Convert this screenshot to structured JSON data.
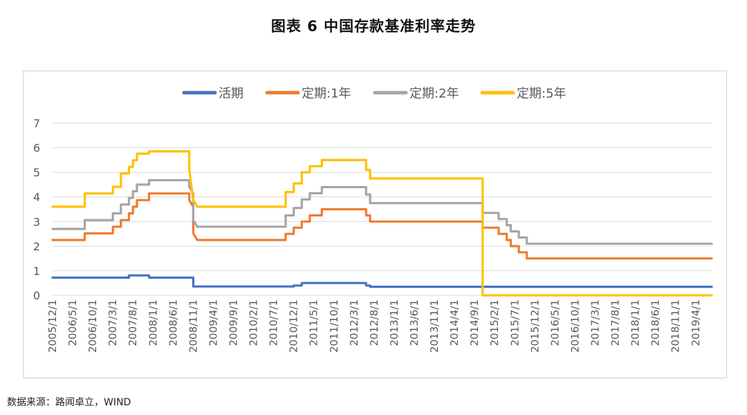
{
  "title": "图表 6 中国存款基准利率走势",
  "source": "数据来源：路闻卓立，WIND",
  "chart_data": {
    "type": "line",
    "title": "图表 6 中国存款基准利率走势",
    "xlabel": "",
    "ylabel": "",
    "ylim": [
      0,
      7
    ],
    "yticks": [
      0,
      1,
      2,
      3,
      4,
      5,
      6,
      7
    ],
    "grid": true,
    "legend_position": "top",
    "x_range": [
      "2005/12/1",
      "2019/8/1"
    ],
    "x_tick_labels": [
      "2005/12/1",
      "2006/5/1",
      "2006/10/1",
      "2007/3/1",
      "2007/8/1",
      "2008/1/1",
      "2008/6/1",
      "2008/11/1",
      "2009/4/1",
      "2009/9/1",
      "2010/2/1",
      "2010/7/1",
      "2010/12/1",
      "2011/5/1",
      "2011/10/1",
      "2012/3/1",
      "2012/8/1",
      "2013/1/1",
      "2013/6/1",
      "2013/11/1",
      "2014/4/1",
      "2014/9/1",
      "2015/2/1",
      "2015/7/1",
      "2015/12/1",
      "2016/5/1",
      "2016/10/1",
      "2017/3/1",
      "2017/8/1",
      "2018/1/1",
      "2018/6/1",
      "2018/11/1",
      "2019/4/1"
    ],
    "series": [
      {
        "name": "活期",
        "color": "#4472C4",
        "points": [
          [
            "2005/12/1",
            0.72
          ],
          [
            "2007/7/1",
            0.72
          ],
          [
            "2007/7/1",
            0.81
          ],
          [
            "2007/12/1",
            0.81
          ],
          [
            "2007/12/1",
            0.72
          ],
          [
            "2008/11/1",
            0.72
          ],
          [
            "2008/11/1",
            0.36
          ],
          [
            "2010/12/1",
            0.36
          ],
          [
            "2010/12/1",
            0.4
          ],
          [
            "2011/2/1",
            0.4
          ],
          [
            "2011/2/1",
            0.5
          ],
          [
            "2012/6/1",
            0.5
          ],
          [
            "2012/6/1",
            0.4
          ],
          [
            "2012/7/1",
            0.4
          ],
          [
            "2012/7/1",
            0.35
          ],
          [
            "2019/8/1",
            0.35
          ]
        ]
      },
      {
        "name": "定期:1年",
        "color": "#ED7D31",
        "points": [
          [
            "2005/12/1",
            2.25
          ],
          [
            "2006/8/1",
            2.25
          ],
          [
            "2006/8/1",
            2.52
          ],
          [
            "2007/3/1",
            2.52
          ],
          [
            "2007/3/1",
            2.79
          ],
          [
            "2007/5/1",
            2.79
          ],
          [
            "2007/5/1",
            3.06
          ],
          [
            "2007/7/1",
            3.06
          ],
          [
            "2007/7/1",
            3.33
          ],
          [
            "2007/8/1",
            3.33
          ],
          [
            "2007/8/1",
            3.6
          ],
          [
            "2007/9/1",
            3.6
          ],
          [
            "2007/9/1",
            3.87
          ],
          [
            "2007/12/1",
            3.87
          ],
          [
            "2007/12/1",
            4.14
          ],
          [
            "2008/10/1",
            4.14
          ],
          [
            "2008/10/1",
            3.87
          ],
          [
            "2008/11/1",
            3.6
          ],
          [
            "2008/11/1",
            2.52
          ],
          [
            "2008/12/1",
            2.25
          ],
          [
            "2010/10/1",
            2.25
          ],
          [
            "2010/10/1",
            2.5
          ],
          [
            "2010/12/1",
            2.5
          ],
          [
            "2010/12/1",
            2.75
          ],
          [
            "2011/2/1",
            2.75
          ],
          [
            "2011/2/1",
            3.0
          ],
          [
            "2011/4/1",
            3.0
          ],
          [
            "2011/4/1",
            3.25
          ],
          [
            "2011/7/1",
            3.25
          ],
          [
            "2011/7/1",
            3.5
          ],
          [
            "2012/6/1",
            3.5
          ],
          [
            "2012/6/1",
            3.25
          ],
          [
            "2012/7/1",
            3.25
          ],
          [
            "2012/7/1",
            3.0
          ],
          [
            "2014/11/1",
            3.0
          ],
          [
            "2014/11/1",
            2.75
          ],
          [
            "2015/3/1",
            2.75
          ],
          [
            "2015/3/1",
            2.5
          ],
          [
            "2015/5/1",
            2.5
          ],
          [
            "2015/5/1",
            2.25
          ],
          [
            "2015/6/1",
            2.25
          ],
          [
            "2015/6/1",
            2.0
          ],
          [
            "2015/8/1",
            2.0
          ],
          [
            "2015/8/1",
            1.75
          ],
          [
            "2015/10/1",
            1.75
          ],
          [
            "2015/10/1",
            1.5
          ],
          [
            "2019/8/1",
            1.5
          ]
        ]
      },
      {
        "name": "定期:2年",
        "color": "#A5A5A5",
        "points": [
          [
            "2005/12/1",
            2.7
          ],
          [
            "2006/8/1",
            2.7
          ],
          [
            "2006/8/1",
            3.06
          ],
          [
            "2007/3/1",
            3.06
          ],
          [
            "2007/3/1",
            3.33
          ],
          [
            "2007/5/1",
            3.33
          ],
          [
            "2007/5/1",
            3.69
          ],
          [
            "2007/7/1",
            3.69
          ],
          [
            "2007/7/1",
            3.96
          ],
          [
            "2007/8/1",
            3.96
          ],
          [
            "2007/8/1",
            4.23
          ],
          [
            "2007/9/1",
            4.23
          ],
          [
            "2007/9/1",
            4.5
          ],
          [
            "2007/12/1",
            4.5
          ],
          [
            "2007/12/1",
            4.68
          ],
          [
            "2008/10/1",
            4.68
          ],
          [
            "2008/10/1",
            4.41
          ],
          [
            "2008/11/1",
            4.14
          ],
          [
            "2008/11/1",
            3.06
          ],
          [
            "2008/12/1",
            2.79
          ],
          [
            "2010/10/1",
            2.79
          ],
          [
            "2010/10/1",
            3.25
          ],
          [
            "2010/12/1",
            3.25
          ],
          [
            "2010/12/1",
            3.55
          ],
          [
            "2011/2/1",
            3.55
          ],
          [
            "2011/2/1",
            3.9
          ],
          [
            "2011/4/1",
            3.9
          ],
          [
            "2011/4/1",
            4.15
          ],
          [
            "2011/7/1",
            4.15
          ],
          [
            "2011/7/1",
            4.4
          ],
          [
            "2012/6/1",
            4.4
          ],
          [
            "2012/6/1",
            4.1
          ],
          [
            "2012/7/1",
            4.1
          ],
          [
            "2012/7/1",
            3.75
          ],
          [
            "2014/11/1",
            3.75
          ],
          [
            "2014/11/1",
            3.35
          ],
          [
            "2015/3/1",
            3.35
          ],
          [
            "2015/3/1",
            3.1
          ],
          [
            "2015/5/1",
            3.1
          ],
          [
            "2015/5/1",
            2.85
          ],
          [
            "2015/6/1",
            2.85
          ],
          [
            "2015/6/1",
            2.6
          ],
          [
            "2015/8/1",
            2.6
          ],
          [
            "2015/8/1",
            2.35
          ],
          [
            "2015/10/1",
            2.35
          ],
          [
            "2015/10/1",
            2.1
          ],
          [
            "2019/8/1",
            2.1
          ]
        ]
      },
      {
        "name": "定期:5年",
        "color": "#FFC000",
        "points": [
          [
            "2005/12/1",
            3.6
          ],
          [
            "2006/8/1",
            3.6
          ],
          [
            "2006/8/1",
            4.14
          ],
          [
            "2007/3/1",
            4.14
          ],
          [
            "2007/3/1",
            4.41
          ],
          [
            "2007/5/1",
            4.41
          ],
          [
            "2007/5/1",
            4.95
          ],
          [
            "2007/7/1",
            4.95
          ],
          [
            "2007/7/1",
            5.22
          ],
          [
            "2007/8/1",
            5.22
          ],
          [
            "2007/8/1",
            5.49
          ],
          [
            "2007/9/1",
            5.49
          ],
          [
            "2007/9/1",
            5.76
          ],
          [
            "2007/12/1",
            5.76
          ],
          [
            "2007/12/1",
            5.85
          ],
          [
            "2008/10/1",
            5.85
          ],
          [
            "2008/10/1",
            5.13
          ],
          [
            "2008/11/1",
            3.87
          ],
          [
            "2008/12/1",
            3.6
          ],
          [
            "2010/10/1",
            3.6
          ],
          [
            "2010/10/1",
            4.2
          ],
          [
            "2010/12/1",
            4.2
          ],
          [
            "2010/12/1",
            4.55
          ],
          [
            "2011/2/1",
            4.55
          ],
          [
            "2011/2/1",
            5.0
          ],
          [
            "2011/4/1",
            5.0
          ],
          [
            "2011/4/1",
            5.25
          ],
          [
            "2011/7/1",
            5.25
          ],
          [
            "2011/7/1",
            5.5
          ],
          [
            "2012/6/1",
            5.5
          ],
          [
            "2012/6/1",
            5.1
          ],
          [
            "2012/7/1",
            5.1
          ],
          [
            "2012/7/1",
            4.75
          ],
          [
            "2014/11/1",
            4.75
          ],
          [
            "2014/11/1",
            0.0
          ],
          [
            "2019/8/1",
            0.0
          ]
        ]
      }
    ]
  }
}
